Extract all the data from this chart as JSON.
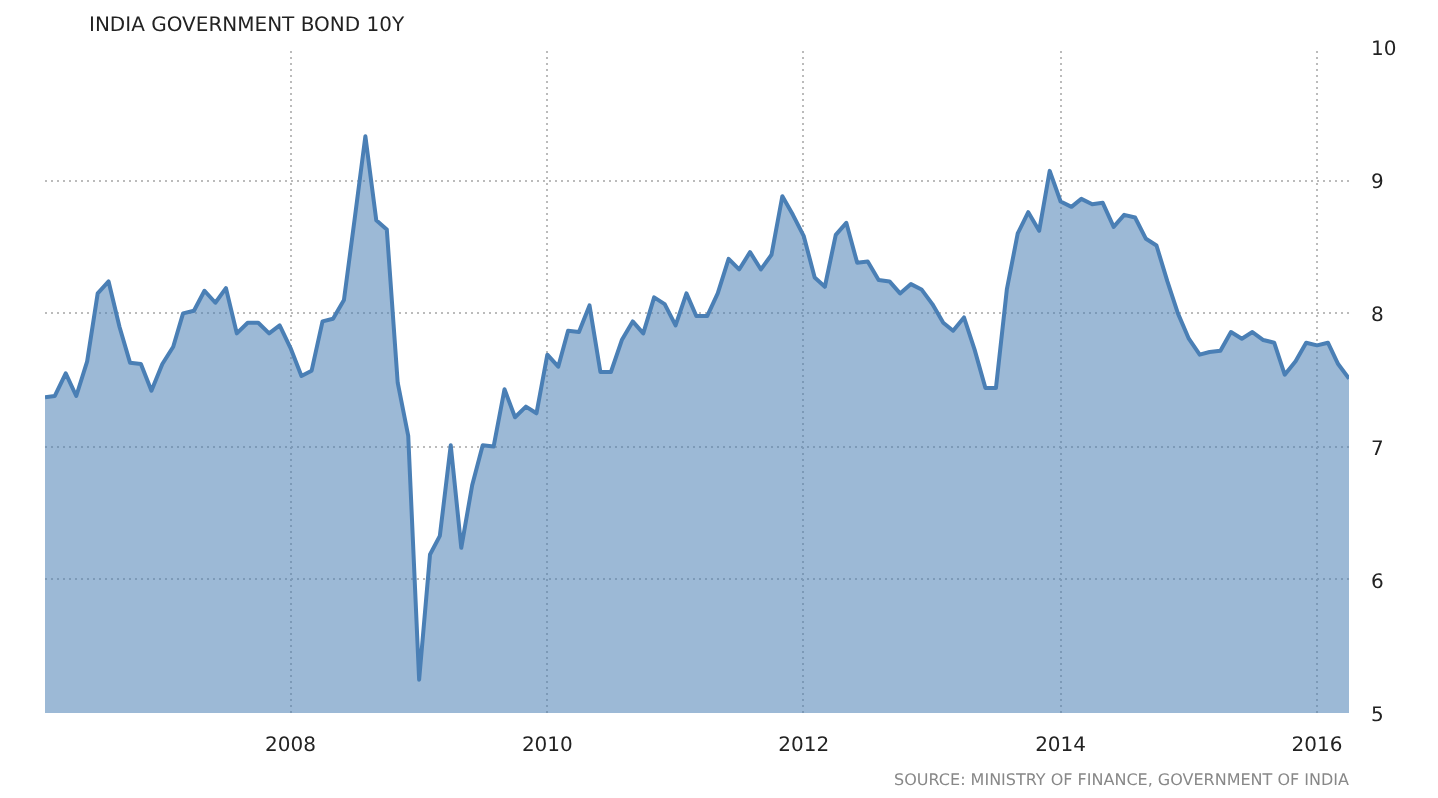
{
  "chart_data": {
    "type": "area",
    "title": "INDIA GOVERNMENT BOND 10Y",
    "annotations": [
      "SOURCE: MINISTRY OF FINANCE, GOVERNMENT OF INDIA"
    ],
    "x": [
      "2006-02",
      "2006-03",
      "2006-04",
      "2006-05",
      "2006-06",
      "2006-07",
      "2006-08",
      "2006-09",
      "2006-10",
      "2006-11",
      "2006-12",
      "2007-01",
      "2007-02",
      "2007-03",
      "2007-04",
      "2007-05",
      "2007-06",
      "2007-07",
      "2007-08",
      "2007-09",
      "2007-10",
      "2007-11",
      "2007-12",
      "2008-01",
      "2008-02",
      "2008-03",
      "2008-04",
      "2008-05",
      "2008-06",
      "2008-07",
      "2008-08",
      "2008-09",
      "2008-10",
      "2008-11",
      "2008-12",
      "2009-01",
      "2009-02",
      "2009-03",
      "2009-04",
      "2009-05",
      "2009-06",
      "2009-07",
      "2009-08",
      "2009-09",
      "2009-10",
      "2009-11",
      "2009-12",
      "2010-01",
      "2010-02",
      "2010-03",
      "2010-04",
      "2010-05",
      "2010-06",
      "2010-07",
      "2010-08",
      "2010-09",
      "2010-10",
      "2010-11",
      "2010-12",
      "2011-01",
      "2011-02",
      "2011-03",
      "2011-04",
      "2011-05",
      "2011-06",
      "2011-07",
      "2011-08",
      "2011-09",
      "2011-10",
      "2011-11",
      "2011-12",
      "2012-01",
      "2012-02",
      "2012-03",
      "2012-04",
      "2012-05",
      "2012-06",
      "2012-07",
      "2012-08",
      "2012-09",
      "2012-10",
      "2012-11",
      "2012-12",
      "2013-01",
      "2013-02",
      "2013-03",
      "2013-04",
      "2013-05",
      "2013-06",
      "2013-07",
      "2013-08",
      "2013-09",
      "2013-10",
      "2013-11",
      "2013-12",
      "2014-01",
      "2014-02",
      "2014-03",
      "2014-04",
      "2014-05",
      "2014-06",
      "2014-07",
      "2014-08",
      "2014-09",
      "2014-10",
      "2014-11",
      "2014-12",
      "2015-01",
      "2015-02",
      "2015-03",
      "2015-04",
      "2015-05",
      "2015-06",
      "2015-07",
      "2015-08",
      "2015-09",
      "2015-10",
      "2015-11",
      "2015-12",
      "2016-01",
      "2016-02",
      "2016-03",
      "2016-04"
    ],
    "values": [
      7.37,
      7.38,
      7.55,
      7.38,
      7.64,
      8.15,
      8.24,
      7.9,
      7.63,
      7.62,
      7.42,
      7.62,
      7.75,
      8.0,
      8.02,
      8.17,
      8.08,
      8.19,
      7.85,
      7.93,
      7.93,
      7.85,
      7.91,
      7.74,
      7.53,
      7.57,
      7.94,
      7.96,
      8.1,
      8.7,
      9.33,
      8.7,
      8.63,
      7.48,
      7.08,
      5.25,
      6.19,
      6.33,
      7.01,
      6.24,
      6.71,
      7.01,
      7.0,
      7.43,
      7.22,
      7.3,
      7.25,
      7.69,
      7.6,
      7.87,
      7.86,
      8.06,
      7.56,
      7.56,
      7.8,
      7.94,
      7.85,
      8.12,
      8.07,
      7.91,
      8.15,
      7.98,
      7.98,
      8.15,
      8.41,
      8.33,
      8.46,
      8.33,
      8.44,
      8.88,
      8.74,
      8.58,
      8.27,
      8.2,
      8.59,
      8.68,
      8.38,
      8.39,
      8.25,
      8.24,
      8.15,
      8.22,
      8.18,
      8.07,
      7.93,
      7.87,
      7.97,
      7.73,
      7.44,
      7.44,
      8.18,
      8.6,
      8.76,
      8.62,
      9.07,
      8.84,
      8.8,
      8.86,
      8.82,
      8.83,
      8.65,
      8.74,
      8.72,
      8.56,
      8.51,
      8.24,
      8.0,
      7.81,
      7.69,
      7.71,
      7.72,
      7.86,
      7.81,
      7.86,
      7.8,
      7.78,
      7.54,
      7.64,
      7.78,
      7.76,
      7.78,
      7.62,
      7.51
    ],
    "color": "#4a7fb5",
    "xlim": [
      "2006-02",
      "2016-04"
    ],
    "ylim": [
      5,
      10
    ],
    "xticks": [
      "2008",
      "2010",
      "2012",
      "2014",
      "2016"
    ],
    "yticks": [
      5,
      6,
      7,
      8,
      9,
      10
    ],
    "grid": true
  }
}
